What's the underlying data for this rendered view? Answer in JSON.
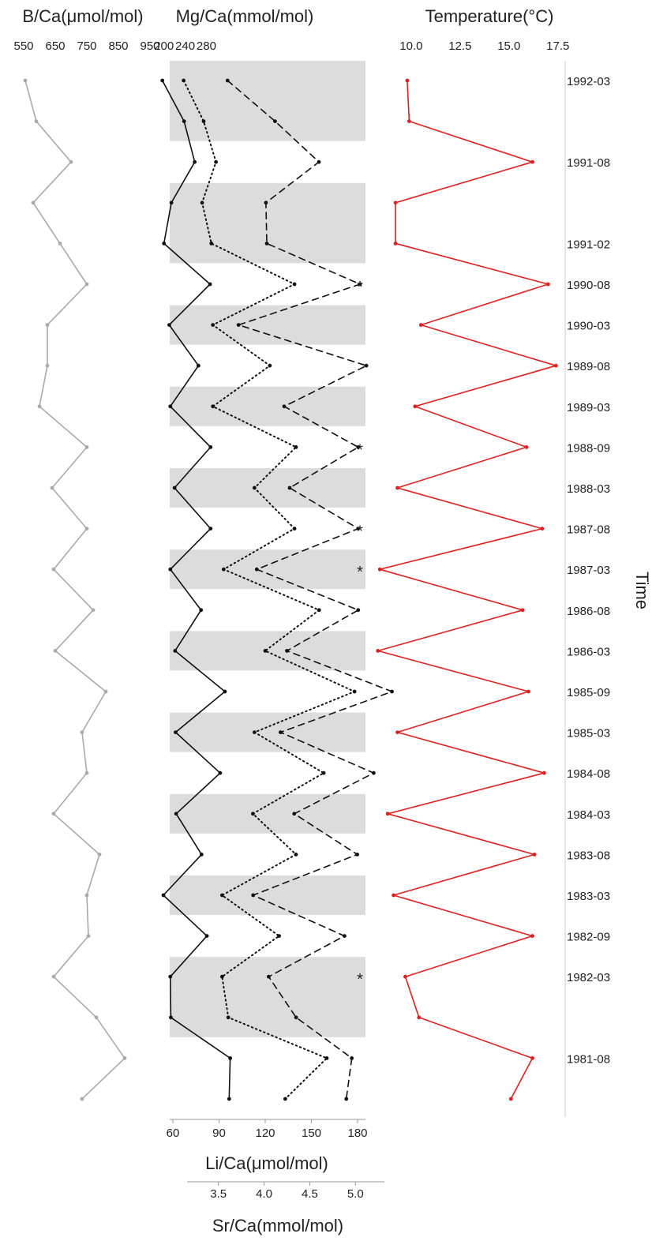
{
  "chart_data": {
    "type": "line",
    "y_axis": {
      "label": "Time",
      "side": "right",
      "dates": [
        {
          "label": "1992-03",
          "row": 0
        },
        {
          "label": "1991-08",
          "row": 2
        },
        {
          "label": "1991-02",
          "row": 4
        },
        {
          "label": "1990-08",
          "row": 5
        },
        {
          "label": "1990-03",
          "row": 6
        },
        {
          "label": "1989-08",
          "row": 7
        },
        {
          "label": "1989-03",
          "row": 8
        },
        {
          "label": "1988-09",
          "row": 9
        },
        {
          "label": "1988-03",
          "row": 10
        },
        {
          "label": "1987-08",
          "row": 11
        },
        {
          "label": "1987-03",
          "row": 12
        },
        {
          "label": "1986-08",
          "row": 13
        },
        {
          "label": "1986-03",
          "row": 14
        },
        {
          "label": "1985-09",
          "row": 15
        },
        {
          "label": "1985-03",
          "row": 16
        },
        {
          "label": "1984-08",
          "row": 17
        },
        {
          "label": "1984-03",
          "row": 18
        },
        {
          "label": "1983-08",
          "row": 19
        },
        {
          "label": "1983-03",
          "row": 20
        },
        {
          "label": "1982-09",
          "row": 21
        },
        {
          "label": "1982-03",
          "row": 22
        },
        {
          "label": "1981-08",
          "row": 24
        }
      ]
    },
    "shaded_bands": [
      [
        0,
        1
      ],
      [
        3,
        4
      ],
      [
        6,
        6
      ],
      [
        8,
        8
      ],
      [
        10,
        10
      ],
      [
        12,
        12
      ],
      [
        14,
        14
      ],
      [
        16,
        16
      ],
      [
        18,
        18
      ],
      [
        20,
        20
      ],
      [
        22,
        23
      ]
    ],
    "asterisk_rows": [
      5,
      9,
      11,
      12,
      22
    ],
    "panels": [
      {
        "id": "boron",
        "axes": [
          {
            "id": "b",
            "title": "B/Ca(μmol/mol)",
            "position": "top",
            "ticks": [
              "550",
              "650",
              "750",
              "850",
              "950"
            ],
            "range": [
              550,
              950
            ]
          }
        ],
        "series": [
          {
            "axis": "b",
            "style": "solid",
            "color": "#aaaaaa",
            "x": [
              555,
              590,
              700,
              580,
              665,
              750,
              625,
              625,
              600,
              750,
              640,
              750,
              645,
              770,
              650,
              810,
              735,
              750,
              645,
              790,
              750,
              755,
              645,
              780,
              870,
              735
            ],
            "row": [
              0,
              1,
              2,
              3,
              4,
              5,
              6,
              7,
              8,
              9,
              10,
              11,
              12,
              13,
              14,
              15,
              16,
              17,
              18,
              19,
              20,
              21,
              22,
              23,
              24,
              25
            ]
          }
        ]
      },
      {
        "id": "multi",
        "axes": [
          {
            "id": "mg",
            "title": "Mg/Ca(mmol/mol)",
            "position": "top",
            "ticks": [
              "200",
              "240",
              "280"
            ],
            "range": [
              190,
              330
            ]
          },
          {
            "id": "li",
            "title": "Li/Ca(μmol/mol)",
            "position": "bottom",
            "ticks": [
              "60",
              "90",
              "120",
              "150",
              "180"
            ],
            "range": [
              60,
              180
            ]
          },
          {
            "id": "sr",
            "title": "Sr/Ca(mmol/mol)",
            "position": "bottom",
            "ticks": [
              "3.5",
              "4.0",
              "4.5",
              "5.0"
            ],
            "range": [
              3.2,
              5.3
            ]
          }
        ],
        "series": [
          {
            "axis": "mg",
            "style": "solid",
            "color": "#111111",
            "x": [
              197,
              238,
              258,
              214,
              200,
              287,
              210,
              265,
              212,
              288,
              220,
              288,
              212,
              270,
              221,
              315,
              222,
              306,
              223,
              271,
              199,
              281,
              212,
              213,
              325,
              323
            ],
            "row": [
              0,
              1,
              2,
              3,
              4,
              5,
              6,
              7,
              8,
              9,
              10,
              11,
              12,
              13,
              14,
              15,
              16,
              17,
              18,
              19,
              20,
              21,
              22,
              23,
              24,
              25
            ]
          },
          {
            "axis": "li",
            "style": "dotted",
            "color": "#111111",
            "x": [
              67,
              80,
              88,
              79,
              85,
              139,
              86,
              123,
              86,
              140,
              113,
              139,
              93,
              155,
              120,
              178,
              113,
              158,
              112,
              140,
              92,
              129,
              92,
              96,
              160,
              133
            ],
            "row": [
              0,
              1,
              2,
              3,
              4,
              5,
              6,
              7,
              8,
              9,
              10,
              11,
              12,
              13,
              14,
              15,
              16,
              17,
              18,
              19,
              20,
              21,
              22,
              23,
              24,
              25
            ]
          },
          {
            "axis": "sr",
            "style": "dashed",
            "color": "#111111",
            "x": [
              3.6,
              4.12,
              4.6,
              4.02,
              4.03,
              5.05,
              3.72,
              5.12,
              4.22,
              5.03,
              4.28,
              5.03,
              3.92,
              5.03,
              4.25,
              5.4,
              4.18,
              5.2,
              4.33,
              5.02,
              3.88,
              4.88,
              4.05,
              4.35,
              4.96,
              4.9
            ],
            "row": [
              0,
              1,
              2,
              3,
              4,
              5,
              6,
              7,
              8,
              9,
              10,
              11,
              12,
              13,
              14,
              15,
              16,
              17,
              18,
              19,
              20,
              21,
              22,
              23,
              24,
              25
            ]
          }
        ]
      },
      {
        "id": "temperature",
        "axes": [
          {
            "id": "t",
            "title": "Temperature(°C)",
            "position": "top",
            "ticks": [
              "10.0",
              "12.5",
              "15.0",
              "17.5"
            ],
            "range": [
              8.35,
              17.55
            ]
          }
        ],
        "series": [
          {
            "axis": "t",
            "style": "solid",
            "color": "#e02020",
            "x": [
              9.8,
              9.9,
              16.2,
              9.2,
              9.2,
              17.0,
              10.5,
              17.4,
              10.2,
              15.9,
              9.3,
              16.7,
              8.4,
              15.7,
              8.3,
              16.0,
              9.3,
              16.8,
              8.8,
              16.3,
              9.1,
              16.2,
              9.7,
              10.4,
              16.2,
              15.1
            ],
            "row": [
              0,
              1,
              2,
              3,
              4,
              5,
              6,
              7,
              8,
              9,
              10,
              11,
              12,
              13,
              14,
              15,
              16,
              17,
              18,
              19,
              20,
              21,
              22,
              23,
              24,
              25
            ]
          }
        ]
      }
    ]
  }
}
